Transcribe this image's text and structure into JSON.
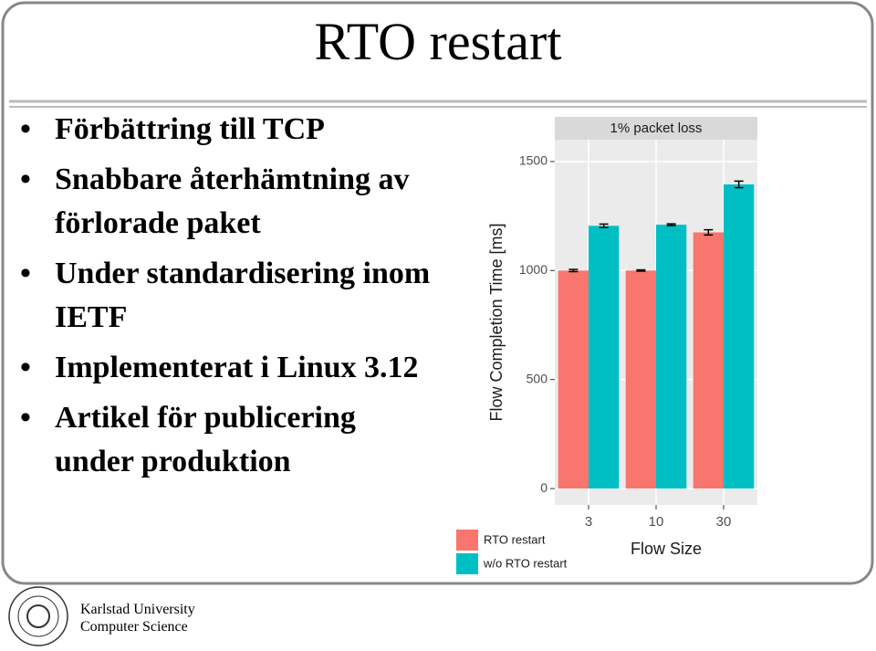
{
  "title": "RTO restart",
  "bullets": [
    "Förbättring till TCP",
    "Snabbare återhämtning av förlorade paket",
    "Under standardisering inom IETF",
    "Implementerat i Linux 3.12",
    "Artikel för publicering under produktion"
  ],
  "footer": {
    "line1": "Karlstad University",
    "line2": "Computer Science"
  },
  "chart_data": {
    "type": "bar",
    "facet": "1% packet loss",
    "ylabel": "Flow Completion Time [ms]",
    "xlabel": "Flow Size",
    "categories": [
      "3",
      "10",
      "30"
    ],
    "series": [
      {
        "name": "RTO restart",
        "color": "#F8766D",
        "values": [
          1000,
          1000,
          1175
        ],
        "errors": [
          5,
          3,
          12
        ]
      },
      {
        "name": "w/o RTO restart",
        "color": "#00BFC4",
        "values": [
          1205,
          1210,
          1395
        ],
        "errors": [
          8,
          4,
          15
        ]
      }
    ],
    "ylim": [
      -75,
      1600
    ],
    "yticks": [
      0,
      500,
      1000,
      1500
    ],
    "grid": true
  }
}
